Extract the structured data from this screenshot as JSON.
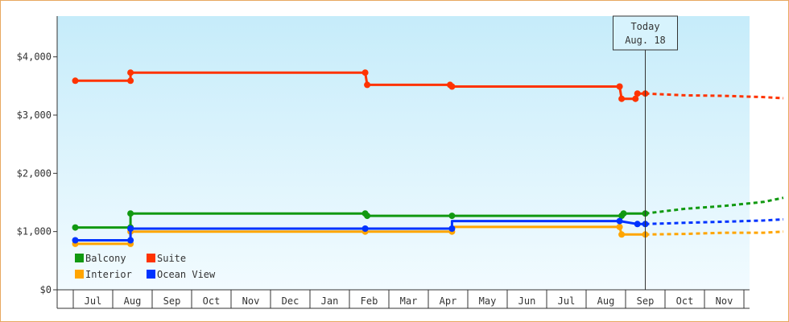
{
  "chart_data": {
    "type": "line",
    "title": "",
    "xlabel": "",
    "ylabel": "",
    "ylim": [
      0,
      4700
    ],
    "y_ticks": [
      0,
      1000,
      2000,
      3000,
      4000
    ],
    "y_tick_labels": [
      "$0",
      "$1,000",
      "$2,000",
      "$3,000",
      "$4,000"
    ],
    "x_tick_labels": [
      "Jul",
      "Aug",
      "Sep",
      "Oct",
      "Nov",
      "Dec",
      "Jan",
      "Feb",
      "Mar",
      "Apr",
      "May",
      "Jun",
      "Jul",
      "Aug",
      "Sep",
      "Oct",
      "Nov"
    ],
    "x_range_months": [
      -0.45,
      17.5
    ],
    "grid": false,
    "background": [
      "#c6ecfa",
      "#f2fbff"
    ],
    "today_marker": {
      "x": 14.0,
      "line1": "Today",
      "line2": "Aug. 18"
    },
    "legend": {
      "placement": "bottom-left"
    },
    "series": [
      {
        "name": "Balcony",
        "color": "#119911",
        "steps": [
          [
            -0.45,
            1070
          ],
          [
            0.95,
            1070
          ],
          [
            0.95,
            1310
          ],
          [
            6.9,
            1310
          ],
          [
            6.95,
            1270
          ],
          [
            9.1,
            1270
          ],
          [
            13.4,
            1270
          ],
          [
            13.45,
            1310
          ],
          [
            14.0,
            1310
          ]
        ],
        "markers": [
          [
            -0.45,
            1070
          ],
          [
            0.95,
            1070
          ],
          [
            0.95,
            1310
          ],
          [
            6.9,
            1310
          ],
          [
            6.95,
            1270
          ],
          [
            9.1,
            1270
          ],
          [
            13.4,
            1270
          ],
          [
            13.45,
            1310
          ],
          [
            14.0,
            1310
          ]
        ],
        "forecast": [
          [
            14.0,
            1310
          ],
          [
            15.0,
            1390
          ],
          [
            16.0,
            1440
          ],
          [
            17.0,
            1510
          ],
          [
            17.5,
            1580
          ]
        ]
      },
      {
        "name": "Suite",
        "color": "#ff3300",
        "steps": [
          [
            -0.45,
            3590
          ],
          [
            0.95,
            3590
          ],
          [
            0.95,
            3730
          ],
          [
            6.9,
            3730
          ],
          [
            6.95,
            3520
          ],
          [
            9.05,
            3520
          ],
          [
            9.1,
            3490
          ],
          [
            13.35,
            3490
          ],
          [
            13.4,
            3280
          ],
          [
            13.75,
            3280
          ],
          [
            13.8,
            3370
          ],
          [
            14.0,
            3370
          ]
        ],
        "markers": [
          [
            -0.45,
            3590
          ],
          [
            0.95,
            3590
          ],
          [
            0.95,
            3730
          ],
          [
            6.9,
            3730
          ],
          [
            6.95,
            3520
          ],
          [
            9.05,
            3520
          ],
          [
            9.1,
            3490
          ],
          [
            13.35,
            3490
          ],
          [
            13.4,
            3280
          ],
          [
            13.75,
            3280
          ],
          [
            13.8,
            3370
          ],
          [
            14.0,
            3370
          ]
        ],
        "forecast": [
          [
            14.0,
            3370
          ],
          [
            15.0,
            3340
          ],
          [
            16.0,
            3330
          ],
          [
            17.0,
            3310
          ],
          [
            17.5,
            3290
          ]
        ]
      },
      {
        "name": "Interior",
        "color": "#ffa500",
        "steps": [
          [
            -0.45,
            790
          ],
          [
            0.95,
            790
          ],
          [
            0.95,
            1000
          ],
          [
            6.9,
            1000
          ],
          [
            9.1,
            1000
          ],
          [
            9.1,
            1080
          ],
          [
            13.35,
            1080
          ],
          [
            13.4,
            950
          ],
          [
            14.0,
            950
          ]
        ],
        "markers": [
          [
            -0.45,
            790
          ],
          [
            0.95,
            790
          ],
          [
            0.95,
            1000
          ],
          [
            6.9,
            1000
          ],
          [
            9.1,
            1000
          ],
          [
            13.35,
            1080
          ],
          [
            13.4,
            950
          ],
          [
            14.0,
            950
          ]
        ],
        "forecast": [
          [
            14.0,
            950
          ],
          [
            15.0,
            960
          ],
          [
            16.0,
            980
          ],
          [
            17.0,
            980
          ],
          [
            17.5,
            1000
          ]
        ]
      },
      {
        "name": "Ocean View",
        "color": "#0033ff",
        "steps": [
          [
            -0.45,
            850
          ],
          [
            0.95,
            850
          ],
          [
            0.95,
            1050
          ],
          [
            6.9,
            1050
          ],
          [
            9.1,
            1050
          ],
          [
            9.1,
            1180
          ],
          [
            13.35,
            1180
          ],
          [
            13.8,
            1130
          ],
          [
            14.0,
            1130
          ]
        ],
        "markers": [
          [
            -0.45,
            850
          ],
          [
            0.95,
            850
          ],
          [
            0.95,
            1050
          ],
          [
            6.9,
            1050
          ],
          [
            9.1,
            1050
          ],
          [
            13.35,
            1180
          ],
          [
            13.8,
            1130
          ],
          [
            14.0,
            1130
          ]
        ],
        "forecast": [
          [
            14.0,
            1130
          ],
          [
            15.0,
            1150
          ],
          [
            16.0,
            1170
          ],
          [
            17.0,
            1190
          ],
          [
            17.5,
            1210
          ]
        ]
      }
    ]
  }
}
